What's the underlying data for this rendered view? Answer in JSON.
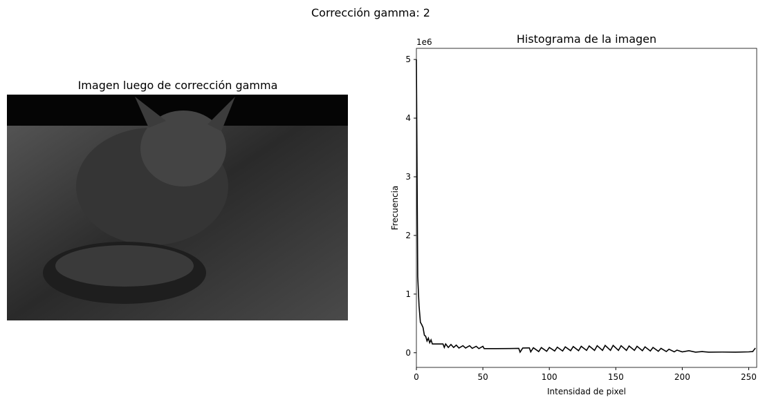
{
  "figure_title": "Corrección gamma: 2",
  "image_panel": {
    "title": "Imagen luego de corrección gamma"
  },
  "chart_data": {
    "type": "line",
    "title": "Histograma de la imagen",
    "x_label": "Intensidad de pixel",
    "y_label": "Frecuencia",
    "y_offset_label": "1e6",
    "xlim": [
      0,
      256
    ],
    "ylim": [
      -250000,
      5190000
    ],
    "xticks": [
      0,
      50,
      100,
      150,
      200,
      250
    ],
    "yticks": [
      {
        "value": 0,
        "label": "0"
      },
      {
        "value": 1000000,
        "label": "1"
      },
      {
        "value": 2000000,
        "label": "2"
      },
      {
        "value": 3000000,
        "label": "3"
      },
      {
        "value": 4000000,
        "label": "4"
      },
      {
        "value": 5000000,
        "label": "5"
      }
    ],
    "grid": false,
    "series": [
      {
        "color": "#000000",
        "x": [
          0,
          1,
          2,
          3,
          4,
          5,
          6,
          7,
          8,
          9,
          10,
          11,
          12,
          15,
          20,
          21,
          22,
          24,
          26,
          28,
          30,
          32,
          35,
          37,
          40,
          42,
          45,
          47,
          50,
          51,
          60,
          70,
          77,
          78,
          80,
          85,
          86,
          88,
          92,
          94,
          98,
          100,
          104,
          106,
          110,
          112,
          116,
          118,
          122,
          124,
          128,
          130,
          134,
          136,
          140,
          142,
          146,
          148,
          152,
          154,
          158,
          160,
          164,
          166,
          170,
          172,
          176,
          178,
          182,
          184,
          188,
          190,
          194,
          196,
          200,
          205,
          210,
          215,
          220,
          230,
          240,
          250,
          253,
          255
        ],
        "values": [
          5000000,
          1300000,
          800000,
          520000,
          480000,
          430000,
          300000,
          280000,
          200000,
          250000,
          170000,
          220000,
          150000,
          150000,
          150000,
          90000,
          150000,
          90000,
          140000,
          90000,
          130000,
          80000,
          120000,
          80000,
          120000,
          75000,
          110000,
          70000,
          110000,
          70000,
          70000,
          72000,
          75000,
          10000,
          80000,
          82000,
          15000,
          85000,
          20000,
          88000,
          25000,
          90000,
          30000,
          95000,
          30000,
          100000,
          35000,
          105000,
          35000,
          110000,
          40000,
          115000,
          40000,
          120000,
          40000,
          125000,
          40000,
          125000,
          40000,
          120000,
          40000,
          115000,
          40000,
          110000,
          35000,
          100000,
          30000,
          90000,
          25000,
          75000,
          20000,
          60000,
          15000,
          45000,
          15000,
          35000,
          10000,
          20000,
          10000,
          12000,
          10000,
          15000,
          20000,
          80000
        ]
      }
    ]
  }
}
